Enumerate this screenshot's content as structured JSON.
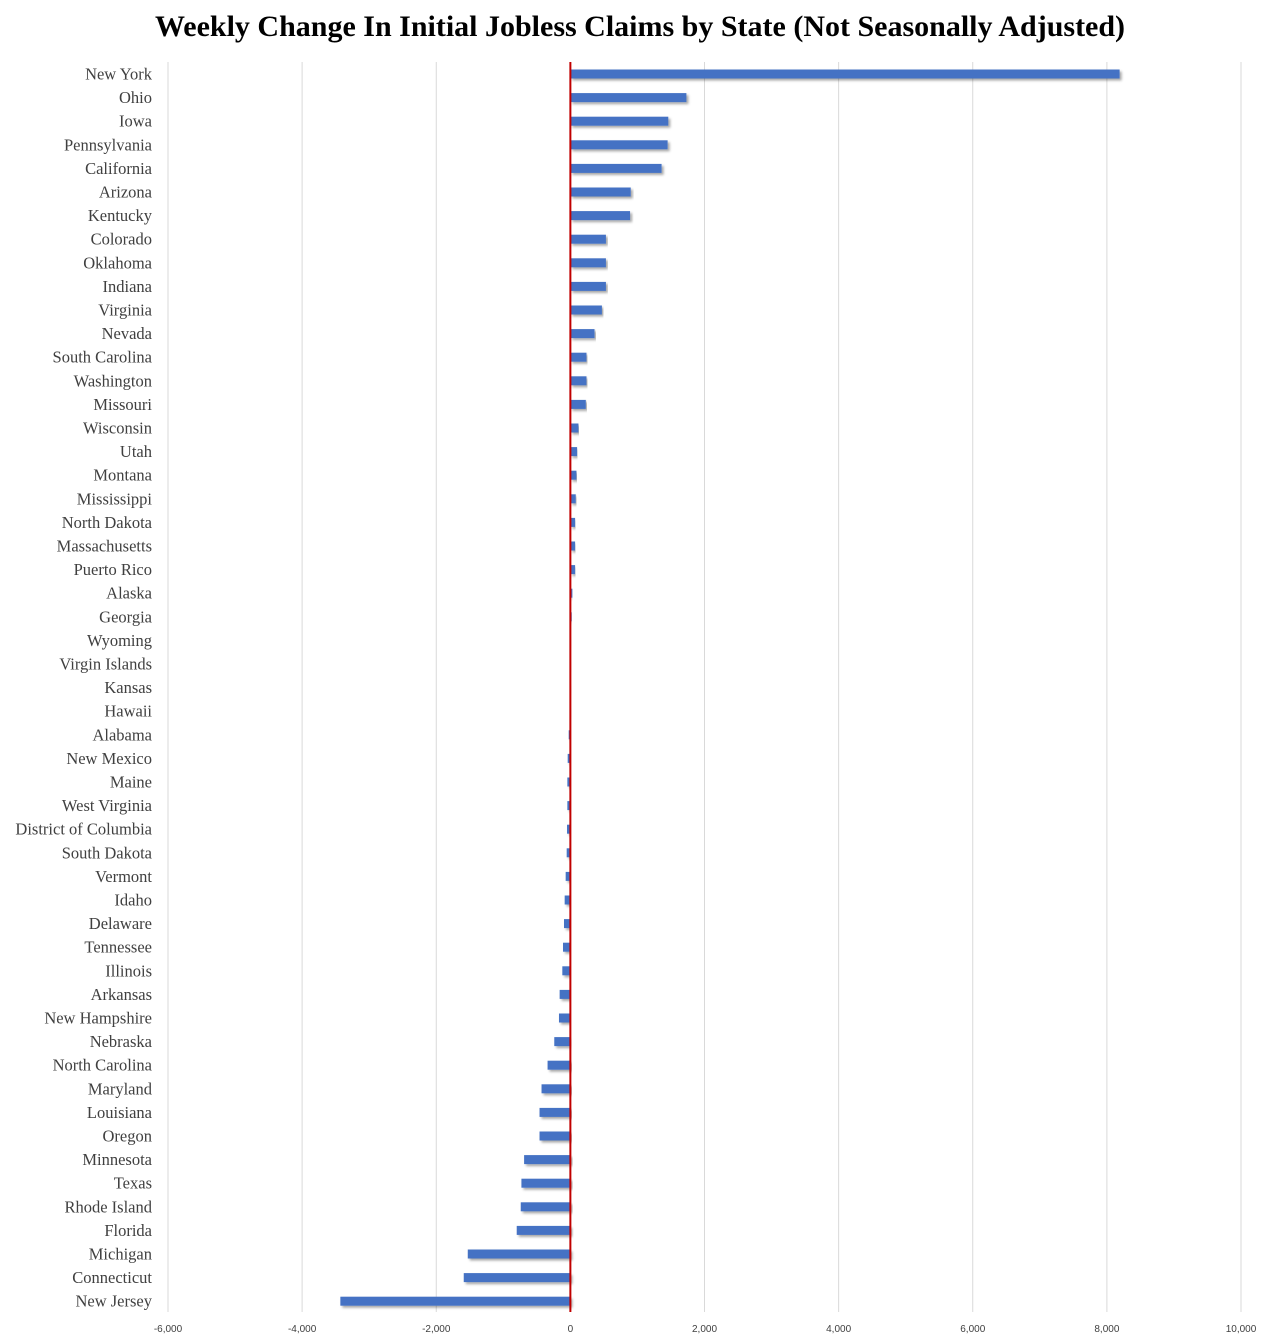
{
  "chart_data": {
    "type": "bar",
    "orientation": "horizontal",
    "title": "Weekly Change In Initial Jobless Claims by State (Not Seasonally Adjusted)",
    "xlabel": "",
    "ylabel": "",
    "xlim": [
      -6000,
      10000
    ],
    "x_ticks": [
      -6000,
      -4000,
      -2000,
      0,
      2000,
      4000,
      6000,
      8000,
      10000
    ],
    "x_tick_labels": [
      "-6,000",
      "-4,000",
      "-2,000",
      "0",
      "2,000",
      "4,000",
      "6,000",
      "8,000",
      "10,000"
    ],
    "grid": "vertical",
    "legend": "none",
    "bar_color": "#4472C4",
    "zero_line_color": "#C00000",
    "grid_color": "#D9D9D9",
    "categories": [
      "New York",
      "Ohio",
      "Iowa",
      "Pennsylvania",
      "California",
      "Arizona",
      "Kentucky",
      "Colorado",
      "Oklahoma",
      "Indiana",
      "Virginia",
      "Nevada",
      "South Carolina",
      "Washington",
      "Missouri",
      "Wisconsin",
      "Utah",
      "Montana",
      "Mississippi",
      "North Dakota",
      "Massachusetts",
      "Puerto Rico",
      "Alaska",
      "Georgia",
      "Wyoming",
      "Virgin Islands",
      "Kansas",
      "Hawaii",
      "Alabama",
      "New Mexico",
      "Maine",
      "West Virginia",
      "District of Columbia",
      "South Dakota",
      "Vermont",
      "Idaho",
      "Delaware",
      "Tennessee",
      "Illinois",
      "Arkansas",
      "New Hampshire",
      "Nebraska",
      "North Carolina",
      "Maryland",
      "Louisiana",
      "Oregon",
      "Minnesota",
      "Texas",
      "Rhode Island",
      "Florida",
      "Michigan",
      "Connecticut",
      "New Jersey"
    ],
    "values": [
      8190,
      1730,
      1460,
      1450,
      1360,
      900,
      890,
      530,
      530,
      530,
      470,
      360,
      240,
      240,
      230,
      120,
      100,
      90,
      80,
      70,
      70,
      70,
      30,
      20,
      5,
      3,
      2,
      1,
      -25,
      -40,
      -45,
      -45,
      -50,
      -55,
      -70,
      -85,
      -95,
      -110,
      -120,
      -160,
      -170,
      -240,
      -340,
      -430,
      -460,
      -460,
      -690,
      -730,
      -740,
      -800,
      -1530,
      -1590,
      -3430
    ]
  }
}
